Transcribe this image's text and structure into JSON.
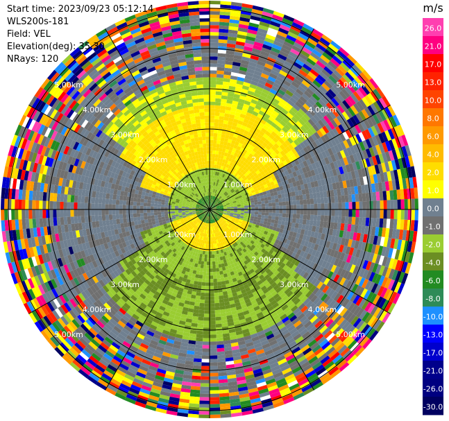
{
  "info": {
    "start_time": "Start time: 2023/09/23 05:12:14",
    "instrument": "WLS200s-181",
    "field": "Field: VEL",
    "elevation": "Elevation(deg): 35.30",
    "nrays": "NRays: 120"
  },
  "colorbar": {
    "unit": "m/s",
    "ticks": [
      "26.0",
      "21.0",
      "17.0",
      "13.0",
      "10.0",
      "8.0",
      "6.0",
      "4.0",
      "2.0",
      "1.0",
      "0.0",
      "-1.0",
      "-2.0",
      "-4.0",
      "-6.0",
      "-8.0",
      "-10.0",
      "-13.0",
      "-17.0",
      "-21.0",
      "-26.0",
      "-30.0"
    ],
    "colors": [
      "#ff3fb0",
      "#ff0080",
      "#ff0000",
      "#ff2200",
      "#ff4400",
      "#ff7700",
      "#ff9900",
      "#ffbb00",
      "#ffdd00",
      "#ffff00",
      "#708090",
      "#707070",
      "#9acd32",
      "#6b8e23",
      "#228b22",
      "#2e8b57",
      "#1e90ff",
      "#0000ff",
      "#0000cd",
      "#00008b",
      "#000080",
      "#000060"
    ]
  },
  "chart_data": {
    "type": "polar radial-velocity scan (PPI)",
    "field": "VEL",
    "units": "m/s",
    "elevation_deg": 35.3,
    "nrays": 120,
    "range_ring_labels": [
      "1.00km",
      "2.00km",
      "3.00km",
      "4.00km",
      "5.00km"
    ],
    "azimuth_spokes": 12,
    "velocity_range": [
      -30.0,
      26.0
    ]
  }
}
